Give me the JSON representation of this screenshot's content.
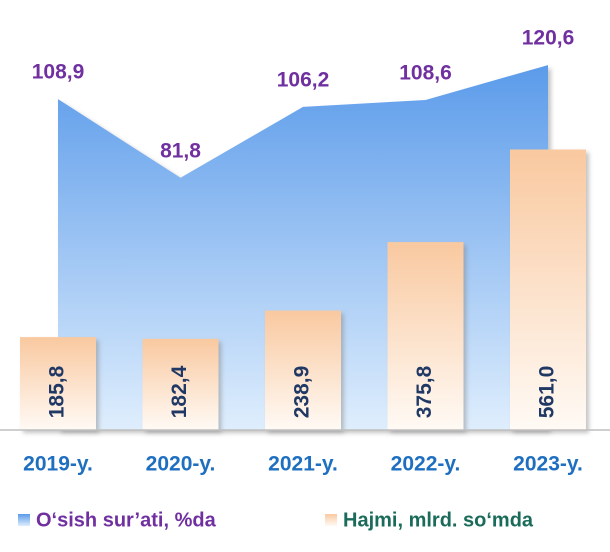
{
  "chart_data": {
    "type": "bar-area",
    "categories": [
      "2019-y.",
      "2020-y.",
      "2021-y.",
      "2022-y.",
      "2023-y."
    ],
    "series": [
      {
        "name": "O‘sish sur’ati, %da",
        "type": "area",
        "axis": "y2",
        "color": "#5b9bea",
        "values": [
          108.9,
          81.8,
          106.2,
          108.6,
          120.6
        ],
        "value_labels": [
          "108,9",
          "81,8",
          "106,2",
          "108,6",
          "120,6"
        ]
      },
      {
        "name": "Hajmi, mlrd. so‘mda",
        "type": "bar",
        "color": "#f9c9a0",
        "values": [
          185.8,
          182.4,
          238.9,
          375.8,
          561.0
        ],
        "value_labels": [
          "185,8",
          "182,4",
          "238,9",
          "375,8",
          "561,0"
        ]
      }
    ],
    "ylim": [
      0,
      860
    ],
    "y2lim": [
      -5,
      143
    ]
  }
}
